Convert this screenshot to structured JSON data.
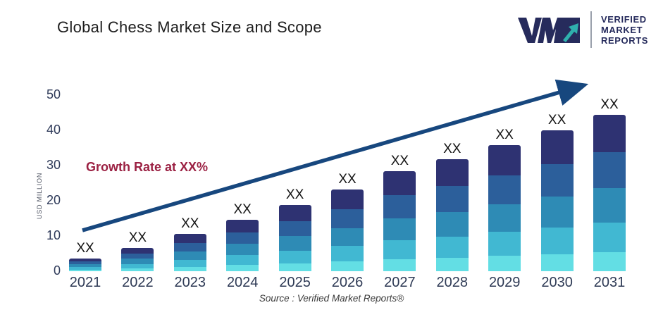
{
  "title": "Global Chess Market Size and Scope",
  "logo": {
    "mark": "VMR",
    "lines": [
      "VERIFIED",
      "MARKET",
      "REPORTS"
    ],
    "navy": "#262b5c",
    "teal": "#2fb0ad"
  },
  "annotations": {
    "growth_label": "Growth Rate at XX%",
    "source": "Source :  Verified Market Reports®",
    "bar_value_label": "XX"
  },
  "colors": {
    "arrow": "#17477e",
    "growth_text": "#9b2143",
    "axis_text": "#2e3a59",
    "title_text": "#1c1c1c"
  },
  "chart_data": {
    "type": "bar",
    "stacked": true,
    "title": "Global Chess Market Size and Scope",
    "xlabel": "",
    "ylabel": "USD MILLION",
    "ylim": [
      0,
      50
    ],
    "y_ticks": [
      0,
      10,
      20,
      30,
      40,
      50
    ],
    "grid": false,
    "legend": false,
    "categories": [
      "2021",
      "2022",
      "2023",
      "2024",
      "2025",
      "2026",
      "2027",
      "2028",
      "2029",
      "2030",
      "2031"
    ],
    "totals_usd_million_estimated": [
      3.6,
      6.6,
      10.6,
      14.6,
      18.8,
      23.2,
      28.4,
      31.8,
      35.8,
      40.0,
      44.4
    ],
    "bar_value_labels": [
      "XX",
      "XX",
      "XX",
      "XX",
      "XX",
      "XX",
      "XX",
      "XX",
      "XX",
      "XX",
      "XX"
    ],
    "segment_colors_top_to_bottom": [
      "#2e3272",
      "#2c5f9b",
      "#2e8bb5",
      "#41b8d2",
      "#63dee4"
    ],
    "segment_fractions_top_to_bottom": [
      0.24,
      0.23,
      0.22,
      0.19,
      0.12
    ],
    "trend_arrow": {
      "from_value_year": "2021",
      "to_value_year": "2031",
      "direction": "up-right"
    },
    "annotation_text": "Growth Rate at XX%",
    "source_text": "Source :  Verified Market Reports®"
  }
}
